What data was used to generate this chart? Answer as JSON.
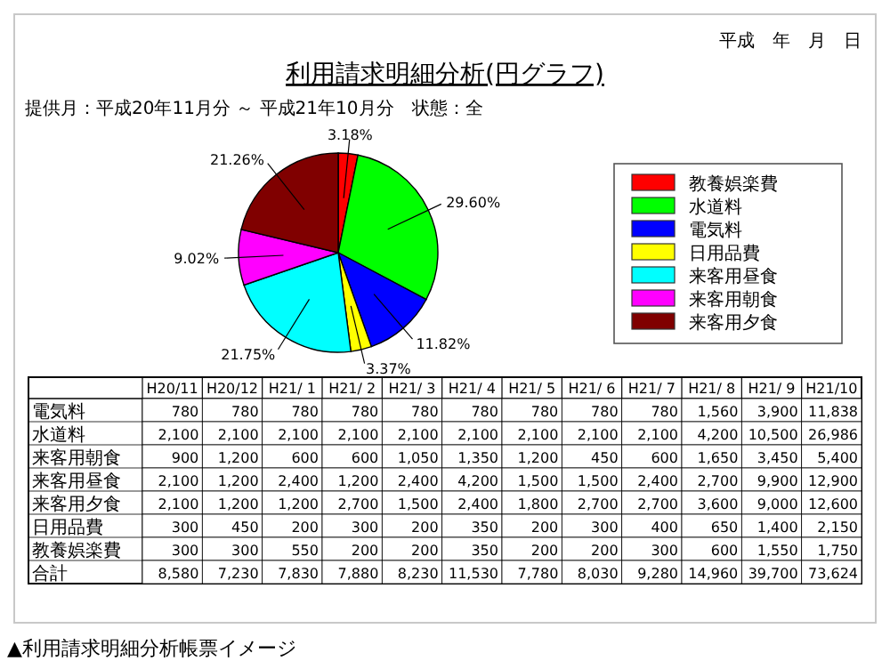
{
  "chart_data": [
    {
      "type": "pie",
      "title": "利用請求明細分析(円グラフ)",
      "subtitle": "提供月：平成20年11月分 ～ 平成21年10月分　状態：全",
      "annotations": [
        "平成　年　月　日",
        "▲利用請求明細分析帳票イメージ"
      ],
      "categories": [
        "教養娯楽費",
        "水道料",
        "電気料",
        "日用品費",
        "来客用昼食",
        "来客用朝食",
        "来客用夕食"
      ],
      "values": [
        3.18,
        29.6,
        11.82,
        3.37,
        21.75,
        9.02,
        21.26
      ],
      "value_labels": [
        "3.18%",
        "29.60%",
        "11.82%",
        "3.37%",
        "21.75%",
        "9.02%",
        "21.26%"
      ],
      "colors": [
        "#ff0000",
        "#00ff00",
        "#0000ff",
        "#ffff00",
        "#00ffff",
        "#ff00ff",
        "#800000"
      ],
      "legend": "right"
    },
    {
      "type": "heatmap",
      "categories": [
        "H20/11",
        "H20/12",
        "H21/ 1",
        "H21/ 2",
        "H21/ 3",
        "H21/ 4",
        "H21/ 5",
        "H21/ 6",
        "H21/ 7",
        "H21/ 8",
        "H21/ 9",
        "H21/10"
      ],
      "y_categories": [
        "電気料",
        "水道料",
        "来客用朝食",
        "来客用昼食",
        "来客用夕食",
        "日用品費",
        "教養娯楽費",
        "合計"
      ],
      "cell_labels": [
        [
          "780",
          "780",
          "780",
          "780",
          "780",
          "780",
          "780",
          "780",
          "780",
          "1,560",
          "3,900",
          "11,838"
        ],
        [
          "2,100",
          "2,100",
          "2,100",
          "2,100",
          "2,100",
          "2,100",
          "2,100",
          "2,100",
          "2,100",
          "4,200",
          "10,500",
          "26,986"
        ],
        [
          "900",
          "1,200",
          "600",
          "600",
          "1,050",
          "1,350",
          "1,200",
          "450",
          "600",
          "1,650",
          "3,450",
          "5,400"
        ],
        [
          "2,100",
          "1,200",
          "2,400",
          "1,200",
          "2,400",
          "4,200",
          "1,500",
          "1,500",
          "2,400",
          "2,700",
          "9,900",
          "12,900"
        ],
        [
          "2,100",
          "1,200",
          "1,200",
          "2,700",
          "1,500",
          "2,400",
          "1,800",
          "2,700",
          "2,700",
          "3,600",
          "9,000",
          "12,600"
        ],
        [
          "300",
          "450",
          "200",
          "300",
          "200",
          "350",
          "200",
          "300",
          "400",
          "650",
          "1,400",
          "2,150"
        ],
        [
          "300",
          "300",
          "550",
          "200",
          "200",
          "350",
          "200",
          "200",
          "300",
          "600",
          "1,550",
          "1,750"
        ],
        [
          "8,580",
          "7,230",
          "7,830",
          "7,880",
          "8,230",
          "11,530",
          "7,780",
          "8,030",
          "9,280",
          "14,960",
          "39,700",
          "73,624"
        ]
      ],
      "cells": [
        [
          780,
          780,
          780,
          780,
          780,
          780,
          780,
          780,
          780,
          1560,
          3900,
          11838
        ],
        [
          2100,
          2100,
          2100,
          2100,
          2100,
          2100,
          2100,
          2100,
          2100,
          4200,
          10500,
          26986
        ],
        [
          900,
          1200,
          600,
          600,
          1050,
          1350,
          1200,
          450,
          600,
          1650,
          3450,
          5400
        ],
        [
          2100,
          1200,
          2400,
          1200,
          2400,
          4200,
          1500,
          1500,
          2400,
          2700,
          9900,
          12900
        ],
        [
          2100,
          1200,
          1200,
          2700,
          1500,
          2400,
          1800,
          2700,
          2700,
          3600,
          9000,
          12600
        ],
        [
          300,
          450,
          200,
          300,
          200,
          350,
          200,
          300,
          400,
          650,
          1400,
          2150
        ],
        [
          300,
          300,
          550,
          200,
          200,
          350,
          200,
          200,
          300,
          600,
          1550,
          1750
        ],
        [
          8580,
          7230,
          7830,
          7880,
          8230,
          11530,
          7780,
          8030,
          9280,
          14960,
          39700,
          73624
        ]
      ]
    }
  ]
}
